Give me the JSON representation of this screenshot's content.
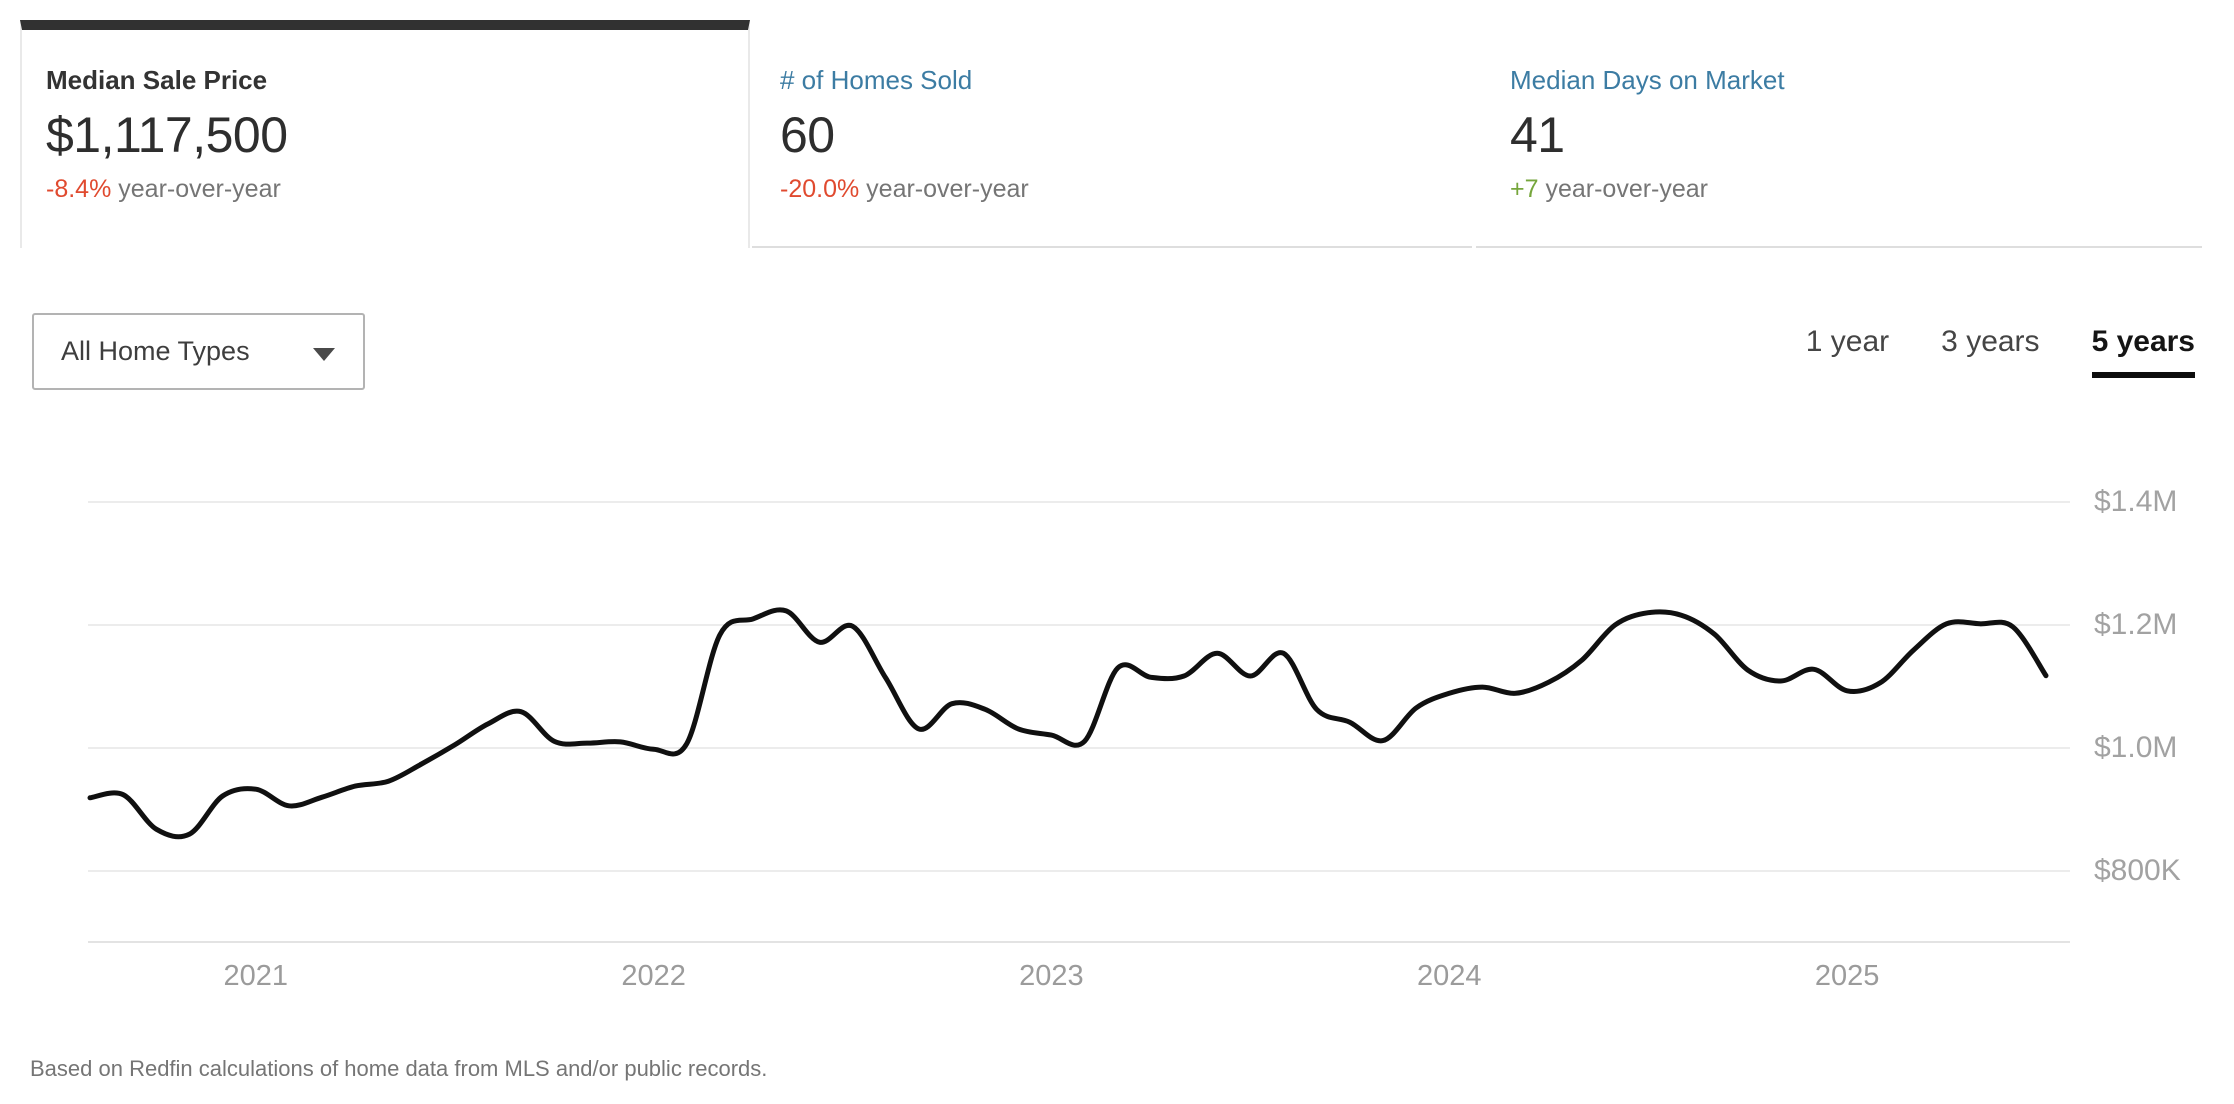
{
  "tabs": [
    {
      "label": "Median Sale Price",
      "value": "$1,117,500",
      "delta": "-8.4%",
      "delta_suffix": " year-over-year",
      "delta_color": "#e04a2f",
      "selected": true
    },
    {
      "label": "# of Homes Sold",
      "value": "60",
      "delta": "-20.0%",
      "delta_suffix": " year-over-year",
      "delta_color": "#e04a2f",
      "selected": false
    },
    {
      "label": "Median Days on Market",
      "value": "41",
      "delta": "+7",
      "delta_suffix": " year-over-year",
      "delta_color": "#76a63c",
      "selected": false
    }
  ],
  "controls": {
    "home_type_filter": {
      "value": "All Home Types",
      "icon": "caret-down-icon"
    },
    "time_ranges": [
      {
        "label": "1 year",
        "selected": false
      },
      {
        "label": "3 years",
        "selected": false
      },
      {
        "label": "5 years",
        "selected": true
      }
    ]
  },
  "chart_data": {
    "type": "line",
    "title": "Median Sale Price over 5 years",
    "series_name": "Median Sale Price",
    "unit": "USD",
    "frequency": "monthly",
    "grid": "horizontal",
    "legend": "none",
    "line_color": "#101010",
    "x": [
      "2020-08",
      "2020-09",
      "2020-10",
      "2020-11",
      "2020-12",
      "2021-01",
      "2021-02",
      "2021-03",
      "2021-04",
      "2021-05",
      "2021-06",
      "2021-07",
      "2021-08",
      "2021-09",
      "2021-10",
      "2021-11",
      "2021-12",
      "2022-01",
      "2022-02",
      "2022-03",
      "2022-04",
      "2022-05",
      "2022-06",
      "2022-07",
      "2022-08",
      "2022-09",
      "2022-10",
      "2022-11",
      "2022-12",
      "2023-01",
      "2023-02",
      "2023-03",
      "2023-04",
      "2023-05",
      "2023-06",
      "2023-07",
      "2023-08",
      "2023-09",
      "2023-10",
      "2023-11",
      "2023-12",
      "2024-01",
      "2024-02",
      "2024-03",
      "2024-04",
      "2024-05",
      "2024-06",
      "2024-07",
      "2024-08",
      "2024-09",
      "2024-10",
      "2024-11",
      "2024-12",
      "2025-01",
      "2025-02",
      "2025-03",
      "2025-04",
      "2025-05",
      "2025-06",
      "2025-07"
    ],
    "values": [
      919000,
      924000,
      868000,
      860000,
      922000,
      933000,
      906000,
      920000,
      938000,
      946000,
      974000,
      1005000,
      1039000,
      1059000,
      1011000,
      1008000,
      1010000,
      998000,
      1007000,
      1184000,
      1210000,
      1223000,
      1172000,
      1198000,
      1114000,
      1031000,
      1072000,
      1063000,
      1031000,
      1021000,
      1011000,
      1130000,
      1115000,
      1117000,
      1154000,
      1117000,
      1154000,
      1063000,
      1042000,
      1012000,
      1065000,
      1089000,
      1099000,
      1089000,
      1107000,
      1143000,
      1200000,
      1220000,
      1216000,
      1185000,
      1127000,
      1109000,
      1128000,
      1093000,
      1106000,
      1159000,
      1202000,
      1202000,
      1197000,
      1117500
    ],
    "y_ticks": {
      "values": [
        1400000,
        1200000,
        1000000,
        800000
      ],
      "labels": [
        "$1.4M",
        "$1.2M",
        "$1.0M",
        "$800K"
      ]
    },
    "x_ticks": {
      "years": [
        "2021",
        "2022",
        "2023",
        "2024",
        "2025"
      ],
      "month_index": [
        5,
        17,
        29,
        41,
        53
      ]
    },
    "ylim": [
      680000,
      1500000
    ],
    "legend_position": "none"
  },
  "footer": {
    "disclaimer": "Based on Redfin calculations of home data from MLS and/or public records."
  },
  "colors": {
    "accent_blue": "#3c7ca3",
    "negative_red": "#e04a2f",
    "positive_green": "#76a63c",
    "selected_tab_bar": "#313131",
    "gridline": "#ececec",
    "axis_line": "#e3e3e3",
    "tick_label": "#a2a2a2"
  }
}
